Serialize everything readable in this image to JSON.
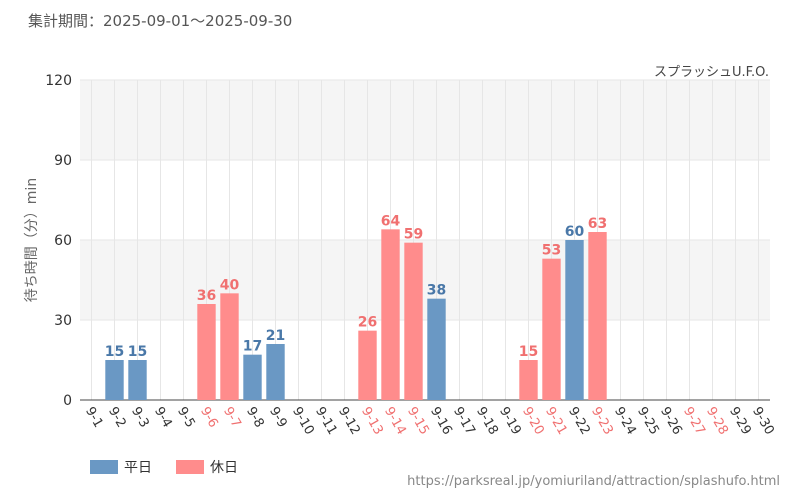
{
  "period": "集計期間：2025-09-01～2025-09-30",
  "source_url": "https://parksreal.jp/yomiuriland/attraction/splashufo.html",
  "colors": {
    "weekday": "#6a98c4",
    "holiday": "#ff8c8c",
    "weekday_label": "#4a78a8",
    "holiday_label": "#f07070",
    "grid": "#e6e6e6",
    "band": "#f5f5f5"
  },
  "chart_data": {
    "type": "bar",
    "title": "スプラッシュU.F.O.",
    "ylabel": "待ち時間（分）min",
    "xlabel": "",
    "ylim": [
      0,
      120
    ],
    "yticks": [
      0,
      30,
      60,
      90,
      120
    ],
    "grid": true,
    "legend_placement": "bottom-left",
    "legend": [
      {
        "name": "平日",
        "kind": "weekday"
      },
      {
        "name": "休日",
        "kind": "holiday"
      }
    ],
    "categories": [
      "9-1",
      "9-2",
      "9-3",
      "9-4",
      "9-5",
      "9-6",
      "9-7",
      "9-8",
      "9-9",
      "9-10",
      "9-11",
      "9-12",
      "9-13",
      "9-14",
      "9-15",
      "9-16",
      "9-17",
      "9-18",
      "9-19",
      "9-20",
      "9-21",
      "9-22",
      "9-23",
      "9-24",
      "9-25",
      "9-26",
      "9-27",
      "9-28",
      "9-29",
      "9-30"
    ],
    "day_kind": [
      "weekday",
      "weekday",
      "weekday",
      "weekday",
      "weekday",
      "holiday",
      "holiday",
      "weekday",
      "weekday",
      "weekday",
      "weekday",
      "weekday",
      "holiday",
      "holiday",
      "holiday",
      "weekday",
      "weekday",
      "weekday",
      "weekday",
      "holiday",
      "holiday",
      "weekday",
      "holiday",
      "weekday",
      "weekday",
      "weekday",
      "holiday",
      "holiday",
      "weekday",
      "weekday"
    ],
    "values": [
      null,
      15,
      15,
      null,
      null,
      36,
      40,
      17,
      21,
      null,
      null,
      null,
      26,
      64,
      59,
      38,
      null,
      null,
      null,
      15,
      53,
      60,
      63,
      null,
      null,
      null,
      null,
      null,
      null,
      null
    ]
  }
}
